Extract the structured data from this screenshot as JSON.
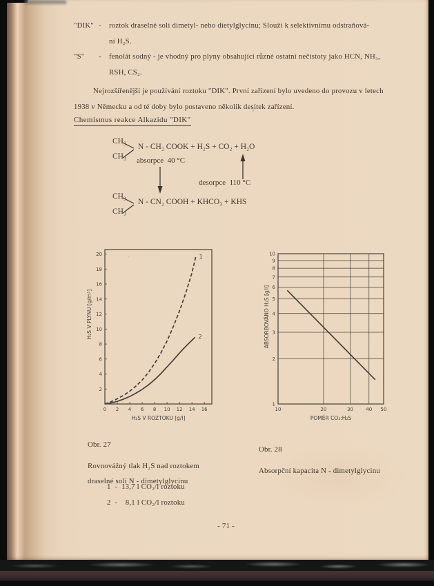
{
  "colors": {
    "paper": "#ecd9c1",
    "ink": "#3e362e",
    "chart_ink": "#45403a"
  },
  "document": {
    "definitions": [
      {
        "term": "\"DIK\"",
        "dash": "-",
        "lines": [
          "roztok draselné soli dimetyl- nebo dietylglycinu; Slouží k selektivnímu odstraňová-",
          "ní H₂S."
        ]
      },
      {
        "term": "\"S\"",
        "dash": "-",
        "lines": [
          "fenolát sodný - je vhodný pro plyny obsahující různé ostatní nečistoty jako HCN, NH₃,",
          "RSH, CS₂."
        ]
      }
    ],
    "paragraph_lines": [
      "Nejrozšířenější je používání roztoku \"DIK\". První zařízení bylo uvedeno do provozu v letech",
      "1938 v Německu a od té doby bylo postaveno několik desítek zařízení."
    ],
    "heading": "Chemismus reakce Alkazidu  \"DIK\"",
    "reaction": {
      "top_ch3_upper": "CH₃",
      "top_ch3_lower": "CH₃",
      "top_formula": "N - CH₂ COOK + H₂S + CO₂ + H₂O",
      "absorb_label": "absorpce  40 °C",
      "desorb_label": "desorpce  110 °C",
      "bottom_ch3_upper": "CH₃",
      "bottom_ch3_lower": "CH₃",
      "bottom_formula": "N - CN₂ COOH + KHCO₃ + KHS"
    },
    "figures": [
      {
        "number": "Obr. 27",
        "caption_lines": [
          "Rovnovážný tlak H₂S nad roztokem",
          "draselné soli N - dimetylglycinu"
        ],
        "legend": [
          "1  -  13,7 l CO₂/l roztoku",
          "2  -    8,1 l CO₂/l roztoku"
        ]
      },
      {
        "number": "Obr. 28",
        "caption_lines": [
          "Absorpční kapacita N - dimetylglycinu"
        ],
        "legend": []
      }
    ],
    "page_number": "- 71 -"
  },
  "chart_data": [
    {
      "type": "line",
      "title": "Obr. 27 — Rovnovážný tlak H₂S nad roztokem draselné soli N-dimetylglycinu",
      "xlabel": "H₂S V ROZTOKU [g/l]",
      "ylabel": "H₂S V PLYNU [g/m³]",
      "xscale": "linear",
      "yscale": "linear",
      "xlim": [
        0,
        17.2
      ],
      "ylim": [
        0,
        20.6
      ],
      "xticks": [
        0,
        2,
        4,
        6,
        8,
        10,
        12,
        14,
        16
      ],
      "yticks": [
        2,
        4,
        6,
        8,
        10,
        12,
        14,
        16,
        18,
        20
      ],
      "grid": false,
      "legend_position": "curve-end-labels",
      "series": [
        {
          "name": "1",
          "style": "dashed",
          "meaning": "13,7 l CO₂/l roztoku",
          "points": [
            [
              0,
              0
            ],
            [
              1,
              0.3
            ],
            [
              2,
              0.7
            ],
            [
              3,
              1.15
            ],
            [
              4,
              1.7
            ],
            [
              5,
              2.4
            ],
            [
              6,
              3.2
            ],
            [
              7,
              4.2
            ],
            [
              8,
              5.4
            ],
            [
              9,
              6.8
            ],
            [
              10,
              8.4
            ],
            [
              11,
              10.3
            ],
            [
              12,
              12.4
            ],
            [
              13,
              14.8
            ],
            [
              14,
              17.5
            ],
            [
              14.6,
              19.6
            ]
          ]
        },
        {
          "name": "2",
          "style": "solid",
          "meaning": "8,1 l CO₂/l roztoku",
          "points": [
            [
              0,
              0
            ],
            [
              1,
              0.15
            ],
            [
              2,
              0.35
            ],
            [
              3,
              0.65
            ],
            [
              4,
              1.0
            ],
            [
              5,
              1.45
            ],
            [
              6,
              1.95
            ],
            [
              7,
              2.55
            ],
            [
              8,
              3.25
            ],
            [
              9,
              4.05
            ],
            [
              10,
              4.95
            ],
            [
              11,
              5.85
            ],
            [
              12,
              6.8
            ],
            [
              13,
              7.7
            ],
            [
              14,
              8.5
            ],
            [
              14.5,
              8.9
            ]
          ]
        }
      ]
    },
    {
      "type": "line",
      "title": "Obr. 28 — Absorpční kapacita N-dimetylglycinu",
      "xlabel": "POMĚR CO₂:H₂S",
      "ylabel": "ABSORBOVÁNO H₂S [g/l]",
      "xscale": "log",
      "yscale": "log",
      "xlim": [
        10,
        50
      ],
      "ylim": [
        1,
        10
      ],
      "xticks": [
        10,
        20,
        30,
        40,
        50
      ],
      "yticks": [
        1,
        2,
        3,
        4,
        5,
        6,
        7,
        8,
        9,
        10
      ],
      "grid": true,
      "series": [
        {
          "name": "",
          "style": "solid",
          "meaning": "absorpční kapacita",
          "points": [
            [
              11.5,
              5.7
            ],
            [
              44,
              1.45
            ]
          ]
        }
      ]
    }
  ]
}
